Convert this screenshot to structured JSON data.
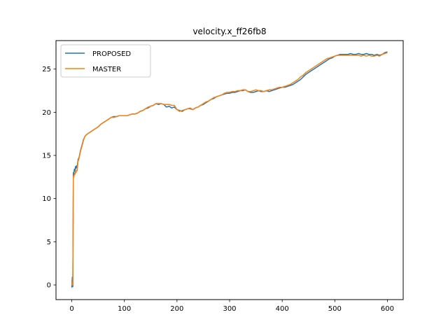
{
  "chart_data": {
    "type": "line",
    "title": "velocity.x_ff26fb8",
    "xlabel": "",
    "ylabel": "",
    "xlim": [
      -30,
      630
    ],
    "ylim": [
      -1.7,
      28.3
    ],
    "x_ticks": [
      0,
      100,
      200,
      300,
      400,
      500,
      600
    ],
    "y_ticks": [
      0,
      5,
      10,
      15,
      20,
      25
    ],
    "grid": false,
    "legend_position": "top-left",
    "series": [
      {
        "name": "PROPOSED",
        "color": "#1f77b4",
        "x": [
          0,
          1,
          2,
          3,
          4,
          5,
          6,
          7,
          8,
          9,
          10,
          12,
          14,
          16,
          18,
          20,
          22,
          25,
          28,
          30,
          35,
          40,
          45,
          50,
          55,
          60,
          65,
          70,
          75,
          80,
          85,
          90,
          95,
          100,
          105,
          110,
          115,
          120,
          125,
          130,
          135,
          140,
          145,
          150,
          155,
          160,
          165,
          170,
          175,
          180,
          185,
          190,
          195,
          200,
          205,
          210,
          215,
          220,
          225,
          230,
          235,
          240,
          245,
          250,
          255,
          260,
          265,
          270,
          275,
          280,
          285,
          290,
          295,
          300,
          305,
          310,
          315,
          320,
          325,
          330,
          335,
          340,
          345,
          350,
          355,
          360,
          365,
          370,
          375,
          380,
          385,
          390,
          395,
          400,
          405,
          410,
          415,
          420,
          425,
          430,
          435,
          440,
          445,
          450,
          455,
          460,
          465,
          470,
          475,
          480,
          485,
          490,
          495,
          500,
          505,
          510,
          515,
          520,
          525,
          530,
          535,
          540,
          545,
          550,
          555,
          560,
          565,
          570,
          575,
          580,
          585,
          590,
          595,
          600
        ],
        "y": [
          -0.3,
          0.9,
          -0.2,
          13.0,
          12.9,
          13.4,
          13.2,
          13.7,
          13.5,
          13.8,
          13.6,
          14.5,
          14.8,
          15.4,
          15.9,
          16.3,
          16.8,
          17.2,
          17.4,
          17.5,
          17.7,
          17.9,
          18.1,
          18.3,
          18.6,
          18.8,
          19.0,
          19.2,
          19.4,
          19.5,
          19.5,
          19.6,
          19.6,
          19.6,
          19.6,
          19.7,
          19.8,
          19.8,
          19.9,
          20.1,
          20.2,
          20.4,
          20.5,
          20.7,
          20.8,
          21.0,
          20.9,
          21.0,
          20.9,
          20.6,
          20.7,
          20.5,
          20.6,
          20.3,
          20.2,
          20.1,
          20.3,
          20.4,
          20.4,
          20.3,
          20.5,
          20.6,
          20.8,
          20.9,
          21.1,
          21.3,
          21.5,
          21.6,
          21.8,
          21.9,
          22.0,
          22.1,
          22.2,
          22.2,
          22.3,
          22.3,
          22.4,
          22.5,
          22.5,
          22.6,
          22.4,
          22.3,
          22.3,
          22.4,
          22.5,
          22.4,
          22.4,
          22.5,
          22.4,
          22.5,
          22.6,
          22.7,
          22.8,
          22.9,
          22.9,
          23.0,
          23.1,
          23.2,
          23.4,
          23.6,
          23.8,
          24.1,
          24.4,
          24.6,
          24.8,
          25.0,
          25.2,
          25.4,
          25.6,
          25.8,
          26.0,
          26.2,
          26.3,
          26.5,
          26.6,
          26.7,
          26.7,
          26.7,
          26.7,
          26.8,
          26.7,
          26.7,
          26.8,
          26.7,
          26.7,
          26.8,
          26.7,
          26.7,
          26.6,
          26.7,
          26.6,
          26.7,
          26.9,
          27.0
        ]
      },
      {
        "name": "MASTER",
        "color": "#ff7f0e",
        "x": [
          0,
          1,
          2,
          3,
          4,
          5,
          6,
          7,
          8,
          9,
          10,
          12,
          14,
          16,
          18,
          20,
          22,
          25,
          28,
          30,
          35,
          40,
          45,
          50,
          55,
          60,
          65,
          70,
          75,
          80,
          85,
          90,
          95,
          100,
          105,
          110,
          115,
          120,
          125,
          130,
          135,
          140,
          145,
          150,
          155,
          160,
          165,
          170,
          175,
          180,
          185,
          190,
          195,
          200,
          205,
          210,
          215,
          220,
          225,
          230,
          235,
          240,
          245,
          250,
          255,
          260,
          265,
          270,
          275,
          280,
          285,
          290,
          295,
          300,
          305,
          310,
          315,
          320,
          325,
          330,
          335,
          340,
          345,
          350,
          355,
          360,
          365,
          370,
          375,
          380,
          385,
          390,
          395,
          400,
          405,
          410,
          415,
          420,
          425,
          430,
          435,
          440,
          445,
          450,
          455,
          460,
          465,
          470,
          475,
          480,
          485,
          490,
          495,
          500,
          505,
          510,
          515,
          520,
          525,
          530,
          535,
          540,
          545,
          550,
          555,
          560,
          565,
          570,
          575,
          580,
          585,
          590,
          595,
          600
        ],
        "y": [
          -0.1,
          0.3,
          0.0,
          12.6,
          12.5,
          12.9,
          12.8,
          13.1,
          13.0,
          13.3,
          13.2,
          14.3,
          14.7,
          15.3,
          15.8,
          16.2,
          16.7,
          17.2,
          17.4,
          17.5,
          17.7,
          17.9,
          18.1,
          18.3,
          18.6,
          18.8,
          19.0,
          19.2,
          19.4,
          19.4,
          19.5,
          19.6,
          19.6,
          19.6,
          19.6,
          19.7,
          19.8,
          19.8,
          19.9,
          20.1,
          20.2,
          20.4,
          20.6,
          20.7,
          20.8,
          21.0,
          21.0,
          21.0,
          20.9,
          20.9,
          20.9,
          20.8,
          20.8,
          20.3,
          20.1,
          20.2,
          20.3,
          20.4,
          20.5,
          20.3,
          20.5,
          20.6,
          20.8,
          21.0,
          21.2,
          21.3,
          21.5,
          21.7,
          21.8,
          21.9,
          22.0,
          22.2,
          22.3,
          22.3,
          22.4,
          22.4,
          22.5,
          22.5,
          22.6,
          22.6,
          22.4,
          22.4,
          22.5,
          22.6,
          22.5,
          22.5,
          22.4,
          22.5,
          22.6,
          22.6,
          22.7,
          22.8,
          22.9,
          22.9,
          23.0,
          23.1,
          23.2,
          23.4,
          23.6,
          23.8,
          24.1,
          24.3,
          24.6,
          24.8,
          25.0,
          25.2,
          25.4,
          25.6,
          25.8,
          26.0,
          26.2,
          26.3,
          26.4,
          26.5,
          26.6,
          26.6,
          26.6,
          26.6,
          26.6,
          26.6,
          26.6,
          26.6,
          26.6,
          26.5,
          26.6,
          26.5,
          26.6,
          26.5,
          26.5,
          26.6,
          26.5,
          26.7,
          26.8,
          26.9
        ]
      }
    ]
  }
}
